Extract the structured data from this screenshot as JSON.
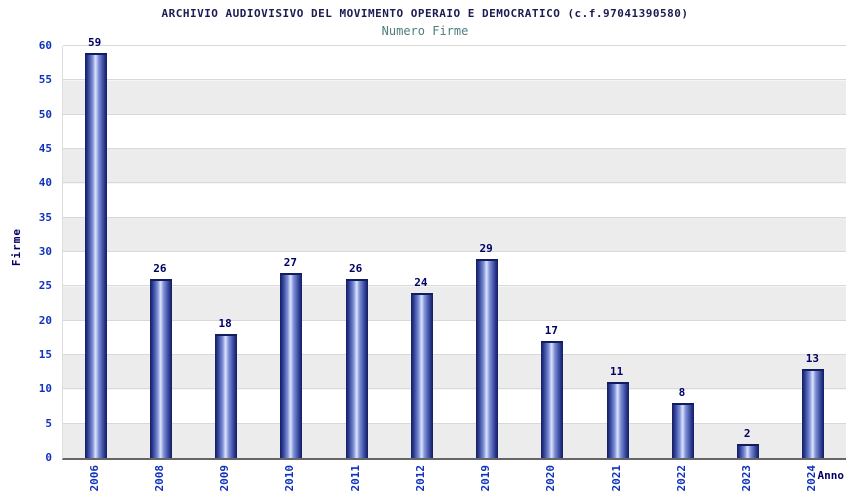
{
  "chart_data": {
    "type": "bar",
    "title": "ARCHIVIO AUDIOVISIVO DEL MOVIMENTO OPERAIO E DEMOCRATICO (c.f.97041390580)",
    "subtitle": "Numero Firme",
    "xlabel": "Anno",
    "ylabel": "Firme",
    "categories": [
      "2006",
      "2008",
      "2009",
      "2010",
      "2011",
      "2012",
      "2019",
      "2020",
      "2021",
      "2022",
      "2023",
      "2024"
    ],
    "values": [
      59,
      26,
      18,
      27,
      26,
      24,
      29,
      17,
      11,
      8,
      2,
      13
    ],
    "ylim": [
      0,
      60
    ],
    "ytick_step": 5,
    "grid": true,
    "legend": false,
    "layout": {
      "bands_alternating": true
    },
    "colors": {
      "title": "#1c1c52",
      "subtitle": "#4f7d7d",
      "tick_label": "#1133bb",
      "value_label": "#000066",
      "axis_label": "#000066",
      "bar_edge": "#121c60",
      "bar_mid": "#7e90d8",
      "bar_highlight": "#dde4fa",
      "band": "#ececec",
      "gridline": "#d9d9d9",
      "axis_line": "#666666"
    }
  }
}
